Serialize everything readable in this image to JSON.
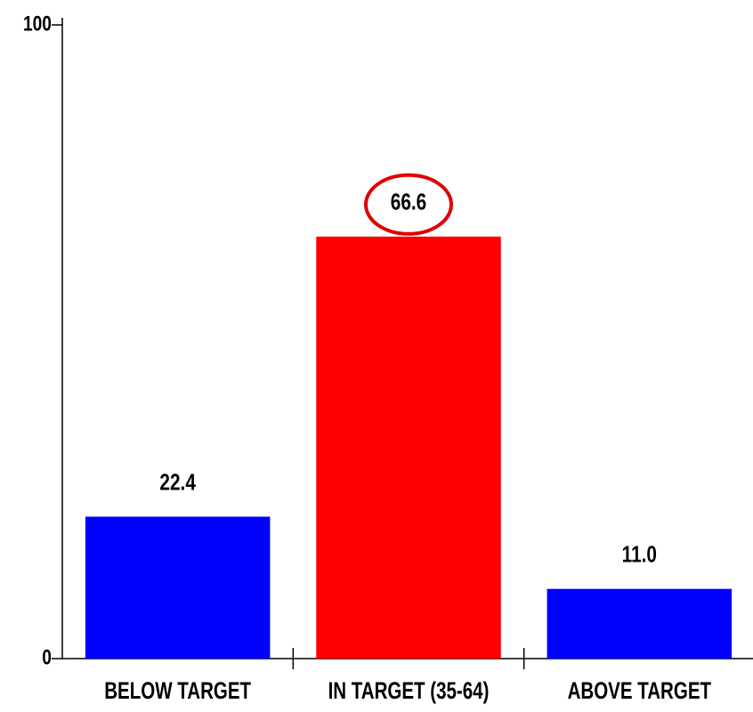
{
  "chart_data": {
    "type": "bar",
    "categories": [
      "BELOW TARGET",
      "IN TARGET (35-64)",
      "ABOVE TARGET"
    ],
    "values": [
      22.4,
      66.6,
      11.0
    ],
    "value_labels": [
      "22.4",
      "66.6",
      "11.0"
    ],
    "colors": [
      "#0000ff",
      "#ff0000",
      "#0000ff"
    ],
    "ylim": [
      0,
      100
    ],
    "yticks": [
      0,
      100
    ],
    "grid": false
  }
}
